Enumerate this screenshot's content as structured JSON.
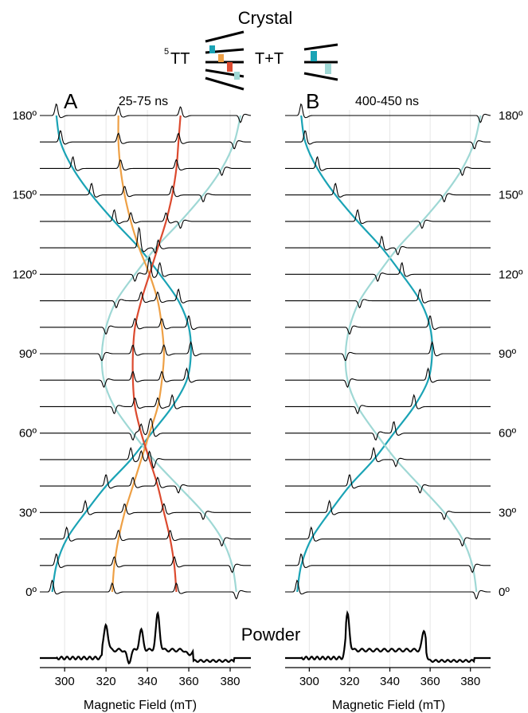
{
  "header": {
    "title": "Crystal",
    "state_5tt": "TT",
    "state_5tt_superscript": "5",
    "state_tt": "T+T"
  },
  "powder_label": "Powder",
  "colors": {
    "teal": "#1aa3b5",
    "light_teal": "#9fd8d5",
    "orange": "#eea045",
    "red": "#dc4a2f",
    "trace": "#000000",
    "grid": "#e6e6e6"
  },
  "chart_data": [
    {
      "type": "line",
      "panel_label": "A",
      "title": "25-75 ns",
      "xlabel": "Magnetic Field (mT)",
      "xlim": [
        288,
        390
      ],
      "xticks": [
        300,
        320,
        340,
        360,
        380
      ],
      "angle_ticks": [
        "0º",
        "30º",
        "60º",
        "90º",
        "120º",
        "150º",
        "180º"
      ],
      "angles_deg": [
        0,
        10,
        20,
        30,
        40,
        50,
        60,
        70,
        80,
        90,
        100,
        110,
        120,
        130,
        140,
        150,
        160,
        170,
        180
      ],
      "tracks": [
        {
          "name": "",
          "color": "teal",
          "fields": [
            294,
            296,
            301,
            310,
            320,
            332,
            342,
            352,
            359,
            361,
            360,
            355,
            346,
            336,
            324,
            313,
            304,
            298,
            296
          ]
        },
        {
          "name": "",
          "color": "light_teal",
          "fields": [
            383,
            381,
            376,
            367,
            355,
            343,
            333,
            324,
            319,
            318,
            320,
            325,
            334,
            344,
            356,
            367,
            376,
            382,
            385
          ]
        },
        {
          "name": "",
          "color": "orange",
          "fields": [
            323,
            324,
            326,
            329,
            333,
            337,
            341,
            345,
            347,
            348,
            347,
            345,
            341,
            336,
            332,
            329,
            327,
            326,
            326
          ]
        },
        {
          "name": "",
          "color": "red",
          "fields": [
            354,
            353,
            351,
            348,
            345,
            341,
            337,
            334,
            333,
            333,
            334,
            337,
            341,
            345,
            349,
            352,
            354,
            355,
            356
          ]
        }
      ],
      "powder_peaks": [
        {
          "field": 320,
          "height": 0.72
        },
        {
          "field": 331,
          "height": -0.35
        },
        {
          "field": 337,
          "height": 0.55
        },
        {
          "field": 345,
          "height": 1.0
        },
        {
          "field": 360,
          "height": -0.15
        }
      ]
    },
    {
      "type": "line",
      "panel_label": "B",
      "title": "400-450 ns",
      "xlabel": "Magnetic Field (mT)",
      "xlim": [
        288,
        390
      ],
      "xticks": [
        300,
        320,
        340,
        360,
        380
      ],
      "angle_ticks": [
        "0º",
        "30º",
        "60º",
        "90º",
        "120º",
        "150º",
        "180º"
      ],
      "angles_deg": [
        0,
        10,
        20,
        30,
        40,
        50,
        60,
        70,
        80,
        90,
        100,
        110,
        120,
        130,
        140,
        150,
        160,
        170,
        180
      ],
      "tracks": [
        {
          "name": "",
          "color": "teal",
          "fields": [
            294,
            296,
            301,
            310,
            320,
            332,
            342,
            352,
            359,
            361,
            360,
            355,
            346,
            336,
            324,
            313,
            304,
            298,
            296
          ]
        },
        {
          "name": "",
          "color": "light_teal",
          "fields": [
            383,
            381,
            376,
            367,
            355,
            343,
            333,
            324,
            319,
            318,
            320,
            325,
            334,
            344,
            356,
            367,
            376,
            382,
            385
          ]
        }
      ],
      "powder_peaks": [
        {
          "field": 319,
          "height": 1.0
        },
        {
          "field": 357,
          "height": 0.55
        }
      ]
    }
  ]
}
